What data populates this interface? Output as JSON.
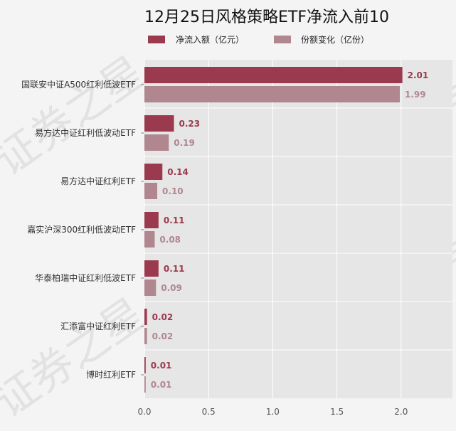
{
  "chart_data": {
    "type": "bar",
    "orientation": "horizontal",
    "title": "12月25日风格策略ETF净流入前10",
    "watermark": "证券之星",
    "categories": [
      "国联安中证A500红利低波ETF",
      "易方达中证红利低波动ETF",
      "易方达中证红利ETF",
      "嘉实沪深300红利低波动ETF",
      "华泰柏瑞中证红利低波ETF",
      "汇添富中证红利ETF",
      "博时红利ETF"
    ],
    "series": [
      {
        "name": "净流入额（亿元）",
        "color": "#9b3a4e",
        "values": [
          2.01,
          0.23,
          0.14,
          0.11,
          0.11,
          0.02,
          0.01
        ],
        "labels": [
          "2.01",
          "0.23",
          "0.14",
          "0.11",
          "0.11",
          "0.02",
          "0.01"
        ]
      },
      {
        "name": "份额变化（亿份）",
        "color": "#b0868f",
        "values": [
          1.99,
          0.19,
          0.1,
          0.08,
          0.09,
          0.02,
          0.01
        ],
        "labels": [
          "1.99",
          "0.19",
          "0.10",
          "0.08",
          "0.09",
          "0.02",
          "0.01"
        ]
      }
    ],
    "xlim": [
      0,
      2.4
    ],
    "xticks": [
      "0.0",
      "0.5",
      "1.0",
      "1.5",
      "2.0"
    ],
    "grid": true,
    "legend_position": "top"
  }
}
